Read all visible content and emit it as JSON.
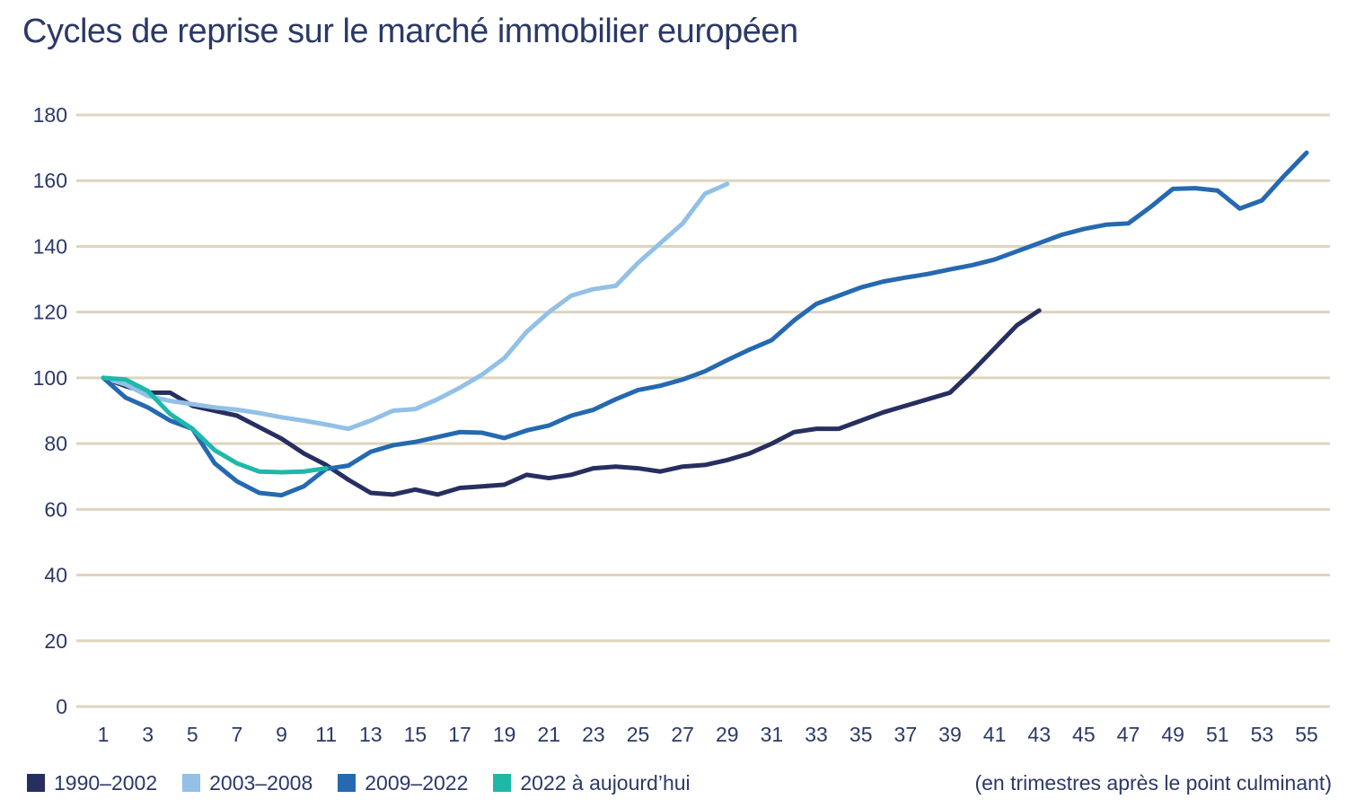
{
  "title": "Cycles de reprise sur le marché immobilier européen",
  "axis_note": "(en trimestres après le point culminant)",
  "colors": {
    "background": "#ffffff",
    "text": "#2b3966",
    "gridline": "#ded5bf"
  },
  "chart_data": {
    "type": "line",
    "title": "Cycles de reprise sur le marché immobilier européen",
    "xlabel": "(en trimestres après le point culminant)",
    "ylabel": "",
    "xlim": [
      1,
      55
    ],
    "ylim": [
      0,
      180
    ],
    "x_ticks": [
      1,
      3,
      5,
      7,
      9,
      11,
      13,
      15,
      17,
      19,
      21,
      23,
      25,
      27,
      29,
      31,
      33,
      35,
      37,
      39,
      41,
      43,
      45,
      47,
      49,
      51,
      53,
      55
    ],
    "y_ticks": [
      0,
      20,
      40,
      60,
      80,
      100,
      120,
      140,
      160,
      180
    ],
    "grid": "horizontal",
    "legend_position": "bottom",
    "x_unit": "trimestres après le point culminant",
    "index_base": 100,
    "series": [
      {
        "name": "1990–2002",
        "color": "#262f5f",
        "x_start": 1,
        "values": [
          100,
          97.5,
          95.5,
          95.5,
          91.5,
          90,
          88.5,
          85,
          81.5,
          77,
          73.5,
          69,
          65,
          64.5,
          66,
          64.5,
          66.5,
          67,
          67.5,
          70.5,
          69.5,
          70.5,
          72.5,
          73,
          72.5,
          71.5,
          73,
          73.5,
          75,
          77,
          80,
          83.5,
          84.5,
          84.5,
          87,
          89.5,
          91.5,
          93.5,
          95.5,
          102,
          109,
          116,
          120.5
        ]
      },
      {
        "name": "2003–2008",
        "color": "#92c0e6",
        "x_start": 1,
        "values": [
          100,
          98,
          94.5,
          93,
          92,
          91,
          90.3,
          89.3,
          88,
          87,
          85.8,
          84.5,
          87,
          90,
          90.5,
          93.5,
          97,
          101,
          106,
          114,
          120,
          125,
          127,
          128,
          135,
          141,
          147,
          156,
          159
        ]
      },
      {
        "name": "2009–2022",
        "color": "#2569b0",
        "x_start": 1,
        "values": [
          100,
          94,
          91,
          87,
          84.5,
          74,
          68.5,
          65,
          64.3,
          67,
          72.3,
          73.3,
          77.5,
          79.5,
          80.5,
          82,
          83.5,
          83.3,
          81.7,
          84,
          85.5,
          88.5,
          90.3,
          93.5,
          96.3,
          97.6,
          99.5,
          102,
          105.4,
          108.6,
          111.5,
          117.5,
          122.5,
          125,
          127.5,
          129.3,
          130.5,
          131.6,
          133,
          134.3,
          136,
          138.5,
          141,
          143.5,
          145.3,
          146.6,
          147,
          152,
          157.5,
          157.7,
          157,
          151.5,
          154,
          161.5,
          168.5
        ]
      },
      {
        "name": "2022 à aujourd’hui",
        "color": "#1eb8a9",
        "x_start": 1,
        "values": [
          100,
          99.5,
          96,
          89,
          84.5,
          78,
          74,
          71.5,
          71.3,
          71.5,
          72.5
        ]
      }
    ]
  }
}
